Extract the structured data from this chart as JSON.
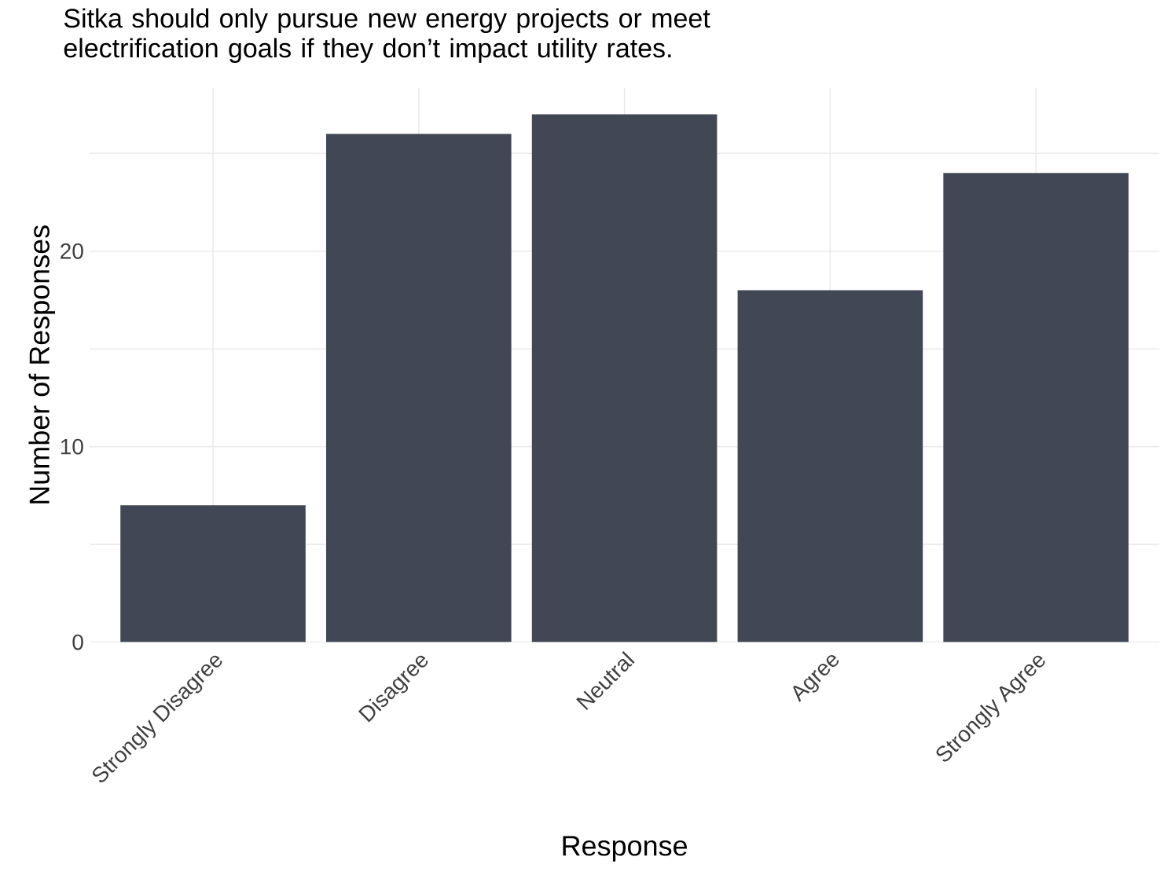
{
  "chart_data": {
    "type": "bar",
    "title": "Sitka should only pursue new energy projects or meet electrification goals if they don’t impact utility rates.",
    "xlabel": "Response",
    "ylabel": "Number of Responses",
    "categories": [
      "Strongly Disagree",
      "Disagree",
      "Neutral",
      "Agree",
      "Strongly Agree"
    ],
    "values": [
      7,
      26,
      27,
      18,
      24
    ],
    "color": "#414755",
    "ylim": [
      0,
      28.35
    ],
    "yticks": [
      0,
      {
        "value": 5,
        "label": null
      },
      10,
      {
        "value": 15,
        "label": null
      },
      20,
      {
        "value": 25,
        "label": null
      }
    ],
    "grid": true
  }
}
